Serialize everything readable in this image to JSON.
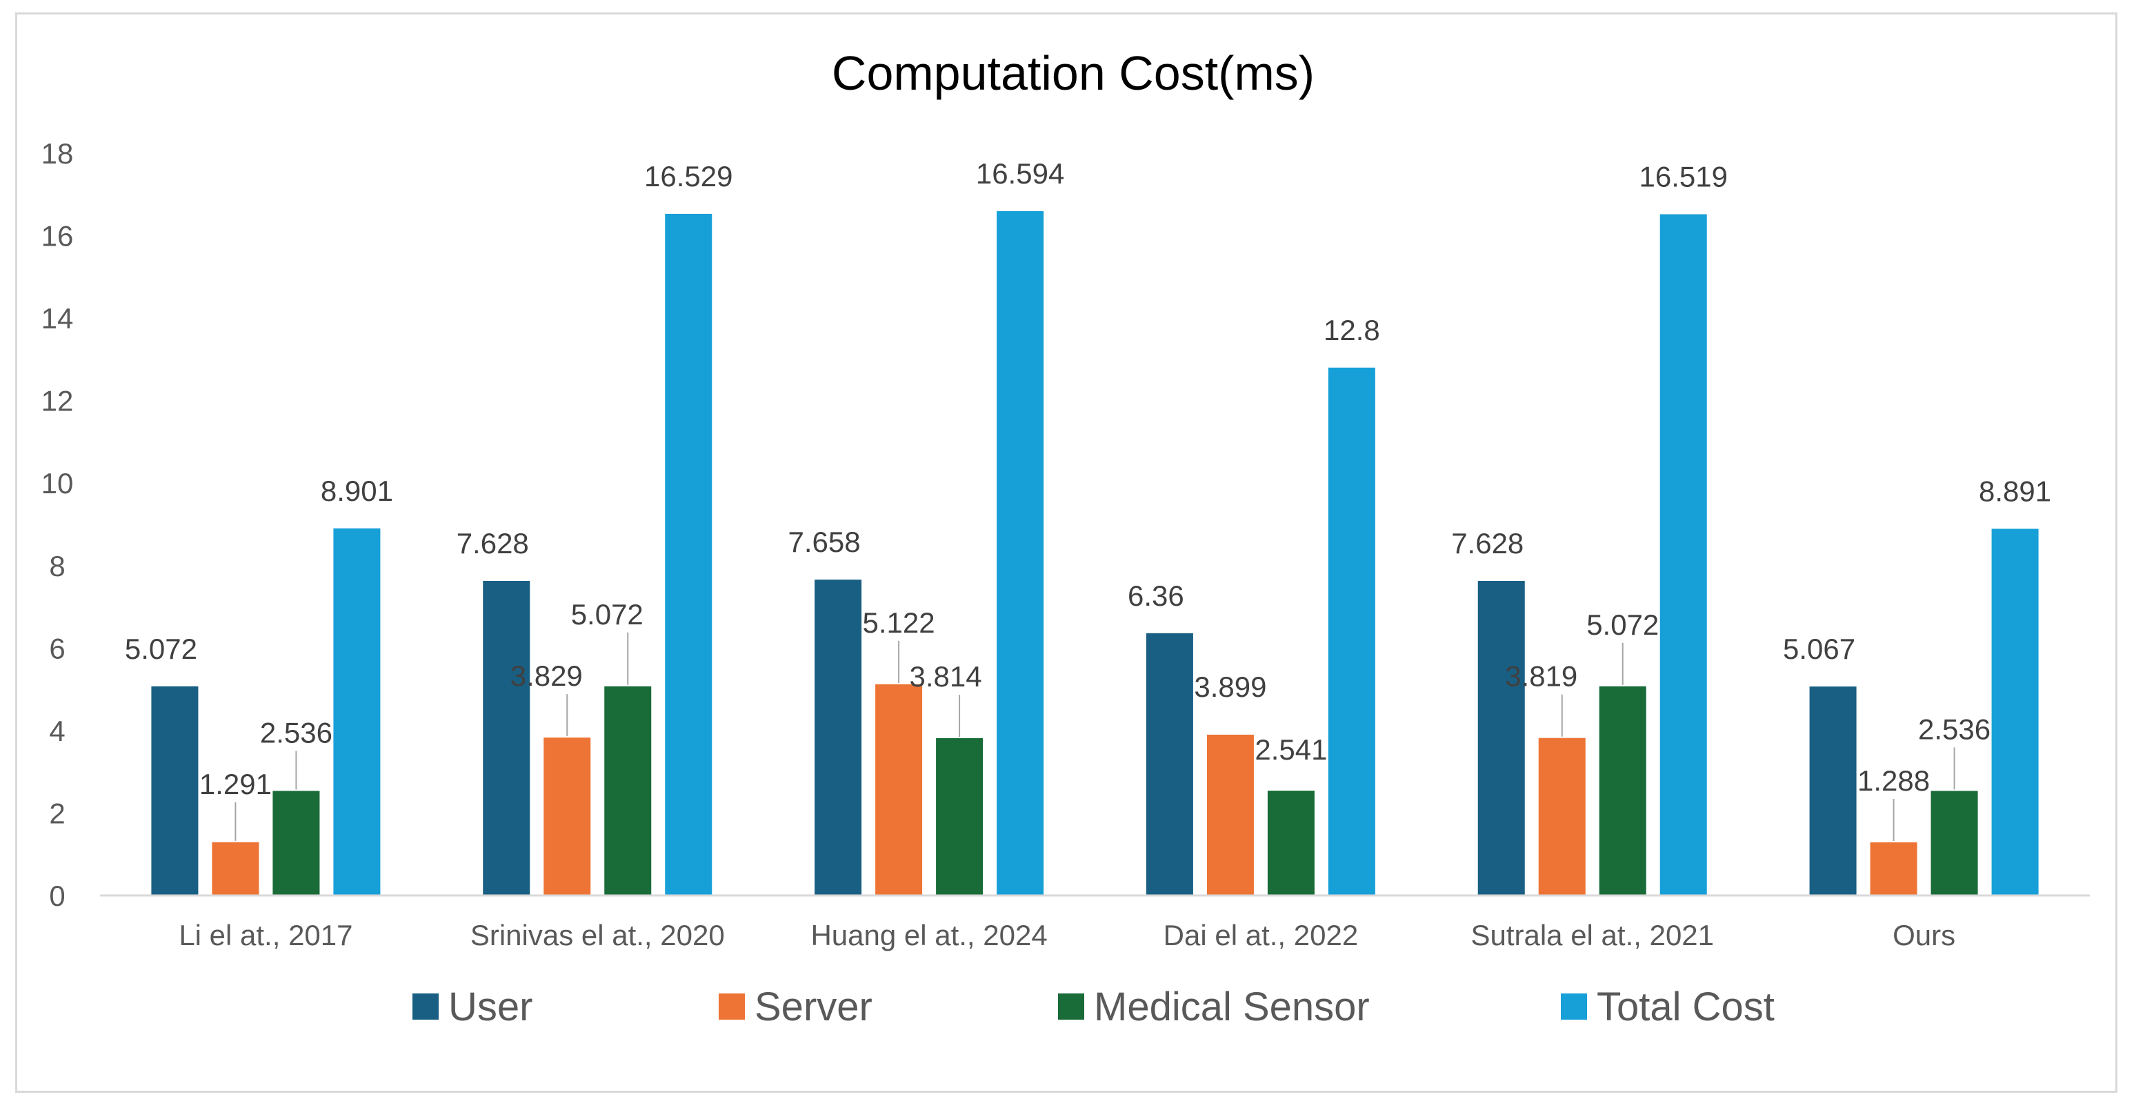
{
  "chart_data": {
    "type": "bar",
    "title": "Computation Cost(ms)",
    "xlabel": "",
    "ylabel": "",
    "ylim": [
      0,
      18
    ],
    "yticks": [
      0,
      2,
      4,
      6,
      8,
      10,
      12,
      14,
      16,
      18
    ],
    "grid": false,
    "legend_position": "bottom",
    "categories": [
      "Li el at., 2017",
      "Srinivas el at., 2020",
      "Huang el at., 2024",
      "Dai el at., 2022",
      "Sutrala el at., 2021",
      "Ours"
    ],
    "series": [
      {
        "name": "User",
        "color": "#185f83",
        "values": [
          5.072,
          7.628,
          7.658,
          6.36,
          7.628,
          5.067
        ]
      },
      {
        "name": "Server",
        "color": "#ed7434",
        "values": [
          1.291,
          3.829,
          5.122,
          3.899,
          3.819,
          1.288
        ]
      },
      {
        "name": "Medical Sensor",
        "color": "#196b38",
        "values": [
          2.536,
          5.072,
          3.814,
          2.541,
          5.072,
          2.536
        ]
      },
      {
        "name": "Total Cost",
        "color": "#17a0d8",
        "values": [
          8.901,
          16.529,
          16.594,
          12.8,
          16.519,
          8.891
        ]
      }
    ]
  }
}
